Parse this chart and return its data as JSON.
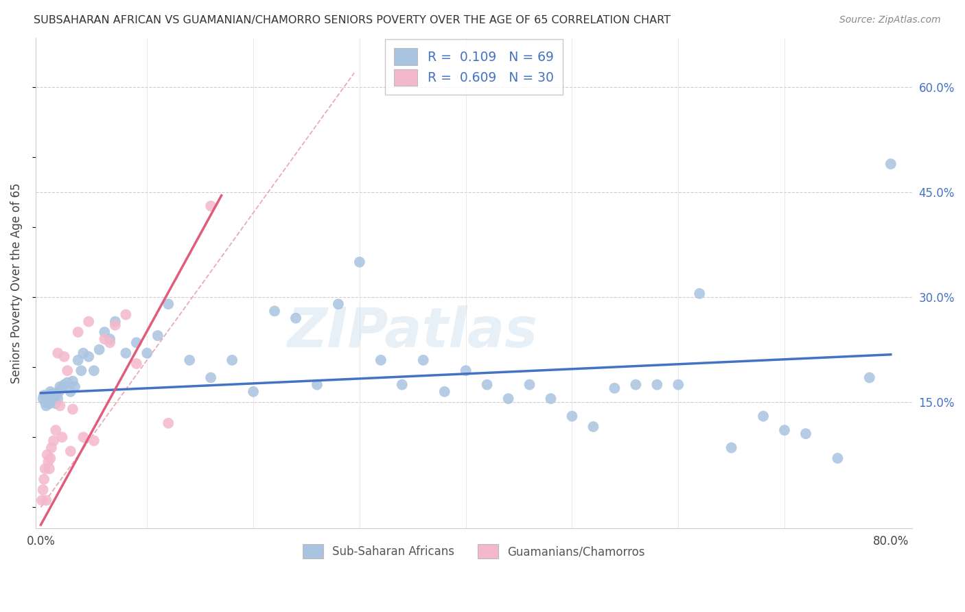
{
  "title": "SUBSAHARAN AFRICAN VS GUAMANIAN/CHAMORRO SENIORS POVERTY OVER THE AGE OF 65 CORRELATION CHART",
  "source": "Source: ZipAtlas.com",
  "ylabel": "Seniors Poverty Over the Age of 65",
  "xlim": [
    -0.005,
    0.82
  ],
  "ylim": [
    -0.03,
    0.67
  ],
  "blue_color": "#a8c4e0",
  "blue_line_color": "#4472c4",
  "pink_color": "#f4b8cb",
  "pink_line_color": "#e05c7a",
  "dash_line_color": "#e8a0b0",
  "blue_R": 0.109,
  "blue_N": 69,
  "pink_R": 0.609,
  "pink_N": 30,
  "legend_label_blue": "Sub-Saharan Africans",
  "legend_label_pink": "Guamanians/Chamorros",
  "watermark": "ZIPatlas",
  "blue_line_x0": 0.0,
  "blue_line_x1": 0.8,
  "blue_line_y0": 0.163,
  "blue_line_y1": 0.218,
  "pink_line_x0": 0.0,
  "pink_line_x1": 0.17,
  "pink_line_y0": -0.025,
  "pink_line_y1": 0.445,
  "dash_line_x0": 0.0,
  "dash_line_x1": 0.295,
  "dash_line_y0": 0.0,
  "dash_line_y1": 0.62,
  "blue_scatter_x": [
    0.002,
    0.003,
    0.004,
    0.005,
    0.006,
    0.007,
    0.008,
    0.009,
    0.01,
    0.011,
    0.012,
    0.013,
    0.014,
    0.015,
    0.016,
    0.017,
    0.018,
    0.02,
    0.022,
    0.025,
    0.028,
    0.03,
    0.032,
    0.035,
    0.038,
    0.04,
    0.045,
    0.05,
    0.055,
    0.06,
    0.065,
    0.07,
    0.08,
    0.09,
    0.1,
    0.11,
    0.12,
    0.14,
    0.16,
    0.18,
    0.2,
    0.22,
    0.24,
    0.26,
    0.28,
    0.3,
    0.32,
    0.34,
    0.36,
    0.38,
    0.4,
    0.42,
    0.44,
    0.46,
    0.48,
    0.5,
    0.52,
    0.54,
    0.56,
    0.58,
    0.6,
    0.62,
    0.65,
    0.68,
    0.7,
    0.72,
    0.75,
    0.78,
    0.8
  ],
  "blue_scatter_y": [
    0.155,
    0.16,
    0.15,
    0.145,
    0.158,
    0.152,
    0.148,
    0.165,
    0.162,
    0.155,
    0.16,
    0.153,
    0.148,
    0.162,
    0.155,
    0.165,
    0.172,
    0.17,
    0.175,
    0.178,
    0.165,
    0.18,
    0.172,
    0.21,
    0.195,
    0.22,
    0.215,
    0.195,
    0.225,
    0.25,
    0.24,
    0.265,
    0.22,
    0.235,
    0.22,
    0.245,
    0.29,
    0.21,
    0.185,
    0.21,
    0.165,
    0.28,
    0.27,
    0.175,
    0.29,
    0.35,
    0.21,
    0.175,
    0.21,
    0.165,
    0.195,
    0.175,
    0.155,
    0.175,
    0.155,
    0.13,
    0.115,
    0.17,
    0.175,
    0.175,
    0.175,
    0.305,
    0.085,
    0.13,
    0.11,
    0.105,
    0.07,
    0.185,
    0.49
  ],
  "pink_scatter_x": [
    0.001,
    0.002,
    0.003,
    0.004,
    0.005,
    0.006,
    0.007,
    0.008,
    0.009,
    0.01,
    0.012,
    0.014,
    0.016,
    0.018,
    0.02,
    0.022,
    0.025,
    0.028,
    0.03,
    0.035,
    0.04,
    0.045,
    0.05,
    0.06,
    0.065,
    0.07,
    0.08,
    0.09,
    0.12,
    0.16
  ],
  "pink_scatter_y": [
    0.01,
    0.025,
    0.04,
    0.055,
    0.01,
    0.075,
    0.065,
    0.055,
    0.07,
    0.085,
    0.095,
    0.11,
    0.22,
    0.145,
    0.1,
    0.215,
    0.195,
    0.08,
    0.14,
    0.25,
    0.1,
    0.265,
    0.095,
    0.24,
    0.235,
    0.26,
    0.275,
    0.205,
    0.12,
    0.43
  ]
}
